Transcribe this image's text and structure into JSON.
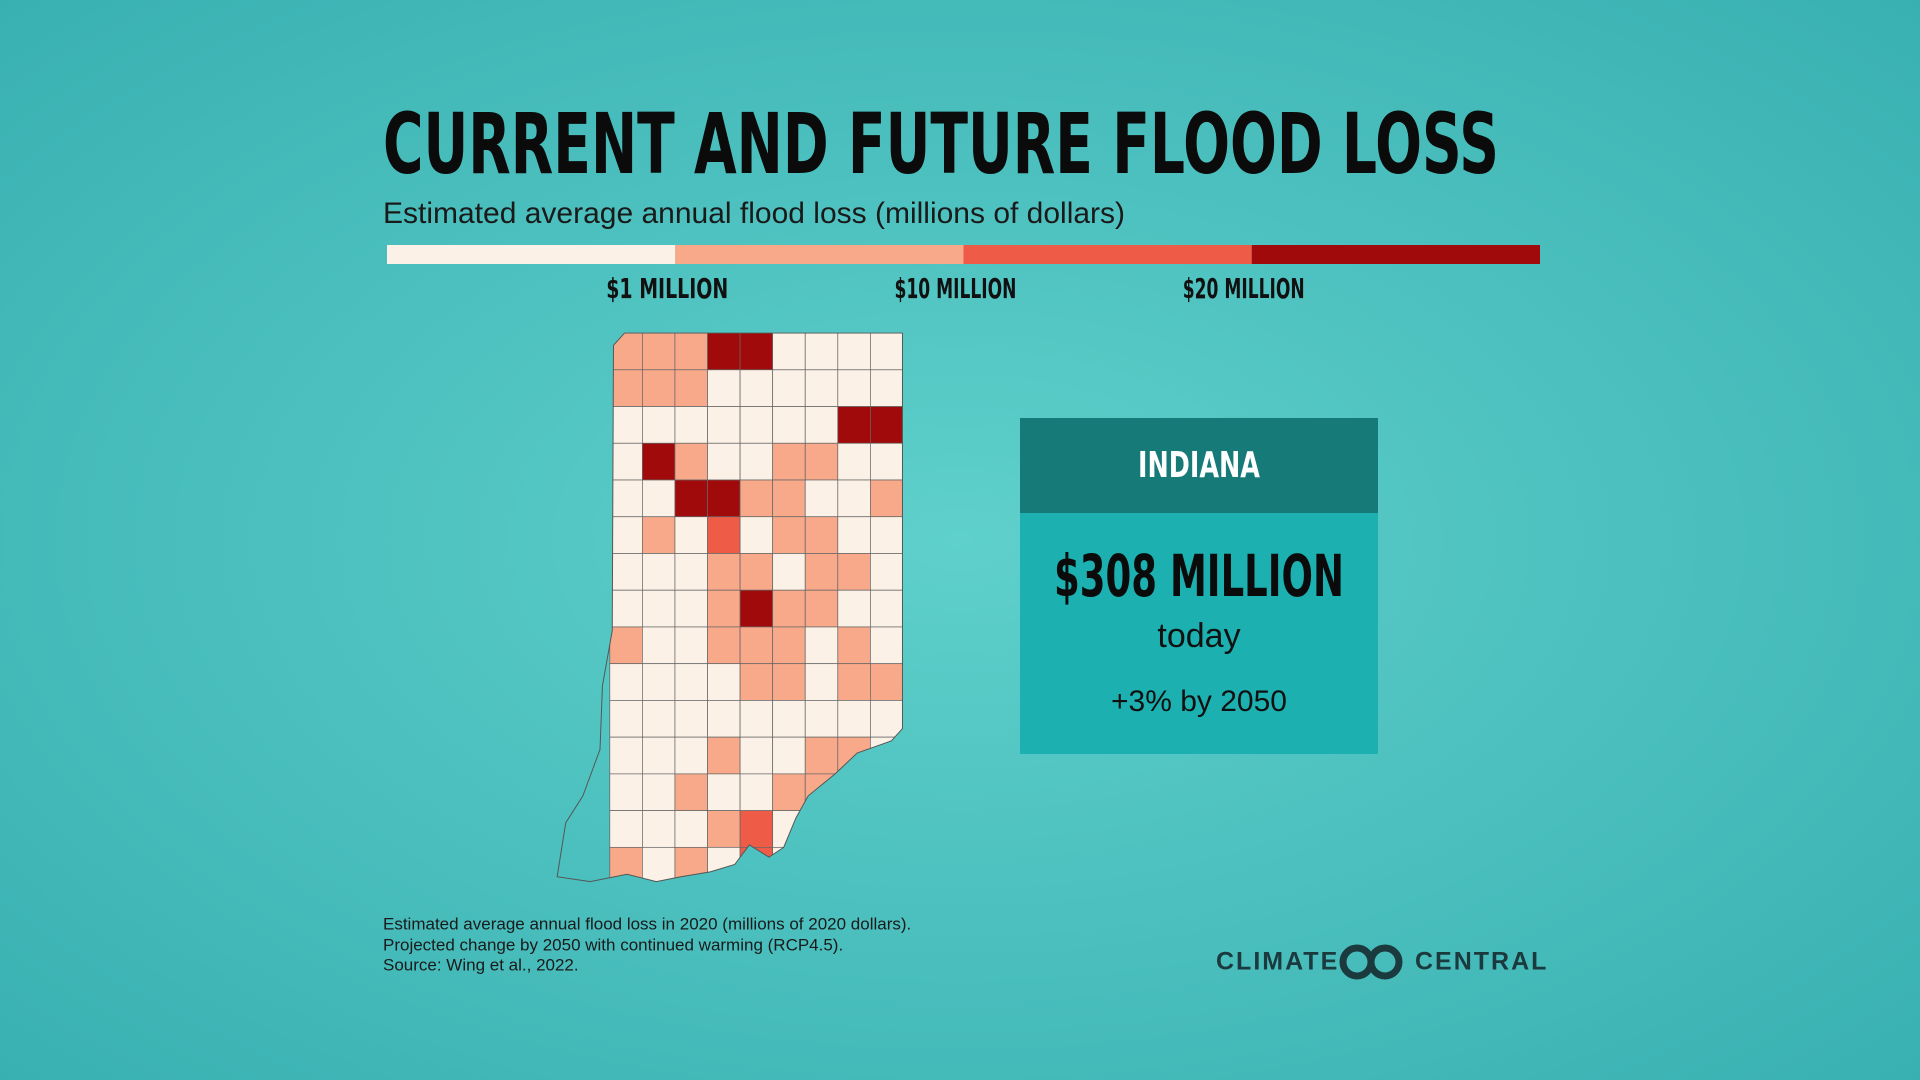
{
  "header": {
    "title": "CURRENT AND FUTURE FLOOD LOSS",
    "subtitle": "Estimated average annual flood loss (millions of dollars)"
  },
  "legend": {
    "colors": [
      "#fbf1e6",
      "#f8a98a",
      "#ee5c48",
      "#a10a0a"
    ],
    "labels": [
      "$1 MILLION",
      "$10 MILLION",
      "$20 MILLION"
    ]
  },
  "state_box": {
    "name": "INDIANA",
    "value": "$308 MILLION",
    "period": "today",
    "change": "+3% by 2050"
  },
  "footnote": [
    "Estimated average annual flood loss in 2020 (millions of 2020 dollars).",
    "Projected change by 2050 with continued warming (RCP4.5).",
    "Source: Wing et al., 2022."
  ],
  "logo": {
    "left": "CLIMATE",
    "right": "CENTRAL"
  }
}
